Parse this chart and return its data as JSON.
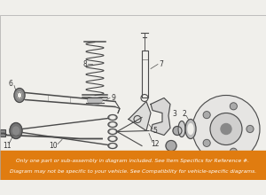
{
  "bg_color": "#f0efeb",
  "banner_color": "#e07c10",
  "banner_text_color": "#ffffff",
  "banner_text_line1": "Only one part or sub-assembly in diagram included. See Item Specifics for Reference #.",
  "banner_text_line2": "Diagram may not be specific to your vehicle. See Compatibility for vehicle-specific diagrams.",
  "banner_fontsize": 4.3,
  "line_color": "#4a4a4a",
  "lw": 0.8
}
